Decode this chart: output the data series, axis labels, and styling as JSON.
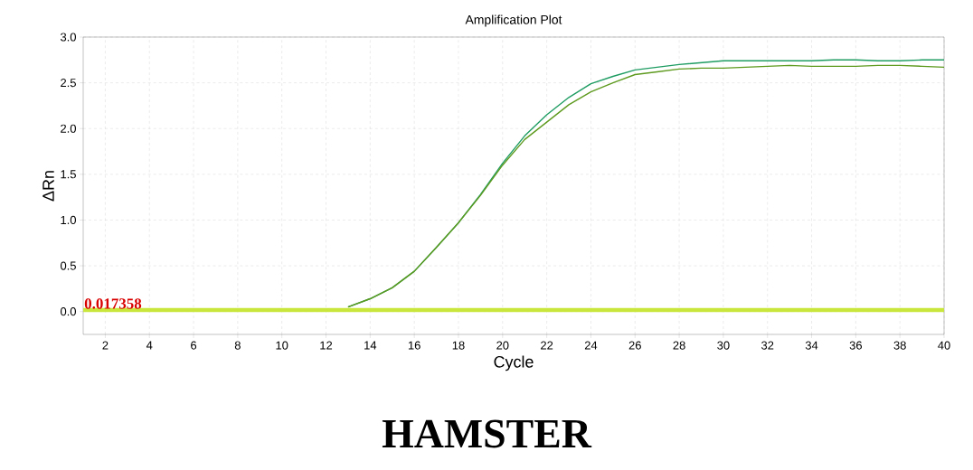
{
  "chart_data": {
    "type": "line",
    "title": "Amplification Plot",
    "xlabel": "Cycle",
    "ylabel": "ΔRn",
    "annotations": [
      "HAMSTER"
    ],
    "x": [
      13,
      14,
      15,
      16,
      17,
      18,
      19,
      20,
      21,
      22,
      23,
      24,
      25,
      26,
      27,
      28,
      29,
      30,
      31,
      32,
      33,
      34,
      35,
      36,
      37,
      38,
      39,
      40
    ],
    "series": [
      {
        "color": "#1e9c62",
        "values": [
          0.05,
          0.14,
          0.26,
          0.44,
          0.7,
          0.97,
          1.28,
          1.62,
          1.92,
          2.15,
          2.34,
          2.49,
          2.57,
          2.64,
          2.67,
          2.7,
          2.72,
          2.74,
          2.74,
          2.74,
          2.74,
          2.74,
          2.75,
          2.75,
          2.74,
          2.74,
          2.75,
          2.75
        ]
      },
      {
        "color": "#5e9a1e",
        "values": [
          0.05,
          0.14,
          0.26,
          0.44,
          0.7,
          0.97,
          1.27,
          1.6,
          1.88,
          2.07,
          2.26,
          2.4,
          2.5,
          2.59,
          2.62,
          2.65,
          2.66,
          2.66,
          2.67,
          2.68,
          2.69,
          2.68,
          2.68,
          2.68,
          2.69,
          2.69,
          2.68,
          2.67
        ]
      }
    ],
    "ref_lines": [
      {
        "axis": "y",
        "value": 0.017358,
        "label": "0.017358",
        "color": "#c8e63c"
      }
    ],
    "xlim": [
      1,
      40
    ],
    "ylim": [
      -0.25,
      3.0
    ],
    "xticks": [
      2,
      4,
      6,
      8,
      10,
      12,
      14,
      16,
      18,
      20,
      22,
      24,
      26,
      28,
      30,
      32,
      34,
      36,
      38,
      40
    ],
    "yticks": [
      {
        "value": 0,
        "label": "0.0"
      },
      {
        "value": 0.5,
        "label": "0.5"
      },
      {
        "value": 1,
        "label": "1.0"
      },
      {
        "value": 1.5,
        "label": "1.5"
      },
      {
        "value": 2,
        "label": "2.0"
      },
      {
        "value": 2.5,
        "label": "2.5"
      },
      {
        "value": 3,
        "label": "3.0"
      }
    ],
    "grid": true,
    "marker": "none",
    "line_style": "solid"
  }
}
